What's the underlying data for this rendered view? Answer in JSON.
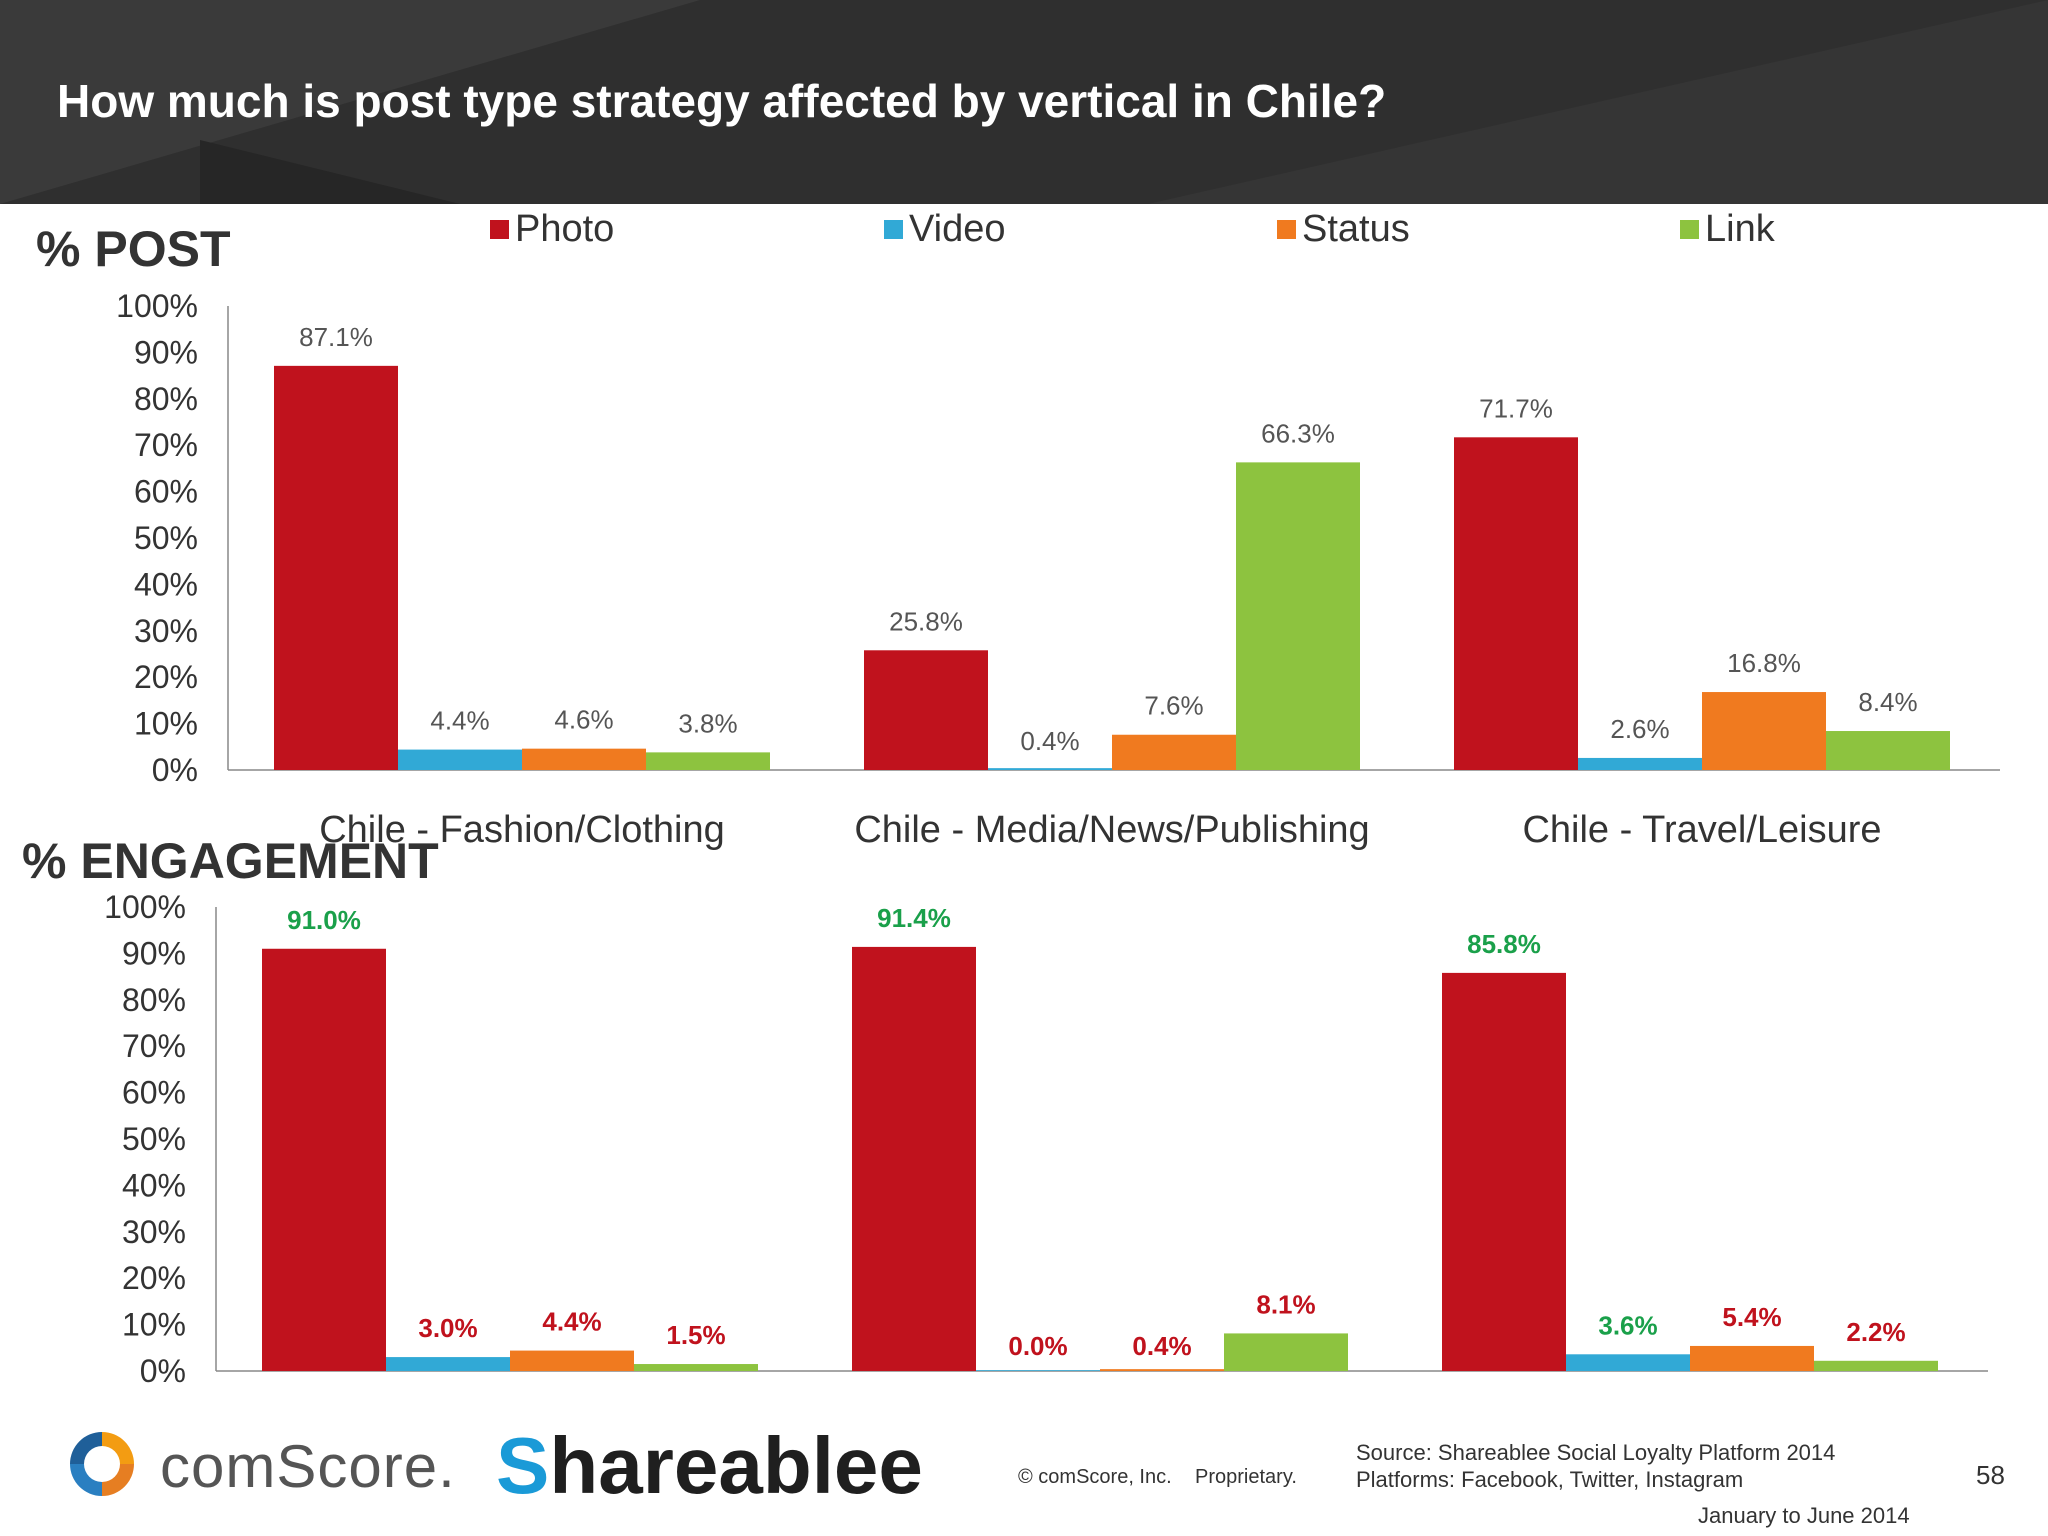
{
  "title": "How much is post type strategy affected by vertical in Chile?",
  "colors": {
    "Photo": "#c0121d",
    "Video": "#31a9d6",
    "Status": "#f07a1f",
    "Link": "#8dc33f",
    "green_label": "#1aa04a",
    "red_label": "#c0121d"
  },
  "legend": [
    {
      "name": "Photo",
      "color": "#c0121d"
    },
    {
      "name": "Video",
      "color": "#31a9d6"
    },
    {
      "name": "Status",
      "color": "#f07a1f"
    },
    {
      "name": "Link",
      "color": "#8dc33f"
    }
  ],
  "chart_data": [
    {
      "type": "bar",
      "title": "% POST",
      "categories": [
        "Chile - Fashion/Clothing",
        "Chile - Media/News/Publishing",
        "Chile - Travel/Leisure"
      ],
      "series": [
        {
          "name": "Photo",
          "values": [
            87.1,
            25.8,
            71.7
          ],
          "labels": [
            "87.1%",
            "25.8%",
            "71.7%"
          ]
        },
        {
          "name": "Video",
          "values": [
            4.4,
            0.4,
            2.6
          ],
          "labels": [
            "4.4%",
            "0.4%",
            "2.6%"
          ]
        },
        {
          "name": "Status",
          "values": [
            4.6,
            7.6,
            16.8
          ],
          "labels": [
            "4.6%",
            "7.6%",
            "16.8%"
          ]
        },
        {
          "name": "Link",
          "values": [
            3.8,
            66.3,
            8.4
          ],
          "labels": [
            "3.8%",
            "66.3%",
            "8.4%"
          ]
        }
      ],
      "yticks": [
        "0%",
        "10%",
        "20%",
        "30%",
        "40%",
        "50%",
        "60%",
        "70%",
        "80%",
        "90%",
        "100%"
      ],
      "ylim": [
        0,
        100
      ],
      "legend_position": "top"
    },
    {
      "type": "bar",
      "title": "% ENGAGEMENT",
      "categories": [
        "Chile - Fashion/Clothing",
        "Chile - Media/News/Publishing",
        "Chile - Travel/Leisure"
      ],
      "series": [
        {
          "name": "Photo",
          "values": [
            91.0,
            91.4,
            85.8
          ],
          "labels": [
            "91.0%",
            "91.4%",
            "85.8%"
          ],
          "label_colors": [
            "green",
            "green",
            "green"
          ]
        },
        {
          "name": "Video",
          "values": [
            3.0,
            0.0,
            3.6
          ],
          "labels": [
            "3.0%",
            "0.0%",
            "3.6%"
          ],
          "label_colors": [
            "red",
            "red",
            "green"
          ]
        },
        {
          "name": "Status",
          "values": [
            4.4,
            0.4,
            5.4
          ],
          "labels": [
            "4.4%",
            "0.4%",
            "5.4%"
          ],
          "label_colors": [
            "red",
            "red",
            "red"
          ]
        },
        {
          "name": "Link",
          "values": [
            1.5,
            8.1,
            2.2
          ],
          "labels": [
            "1.5%",
            "8.1%",
            "2.2%"
          ],
          "label_colors": [
            "red",
            "red",
            "red"
          ]
        }
      ],
      "yticks": [
        "0%",
        "10%",
        "20%",
        "30%",
        "40%",
        "50%",
        "60%",
        "70%",
        "80%",
        "90%",
        "100%"
      ],
      "ylim": [
        0,
        100
      ]
    }
  ],
  "footer": {
    "comscore": "comScore.",
    "shareablee_s": "S",
    "shareablee_rest": "hareablee",
    "copyright": "© comScore, Inc.",
    "proprietary": "Proprietary.",
    "source": "Source: Shareablee Social Loyalty Platform 2014",
    "platforms": "Platforms: Facebook, Twitter, Instagram",
    "date_range": "January to June 2014",
    "page": "58"
  }
}
